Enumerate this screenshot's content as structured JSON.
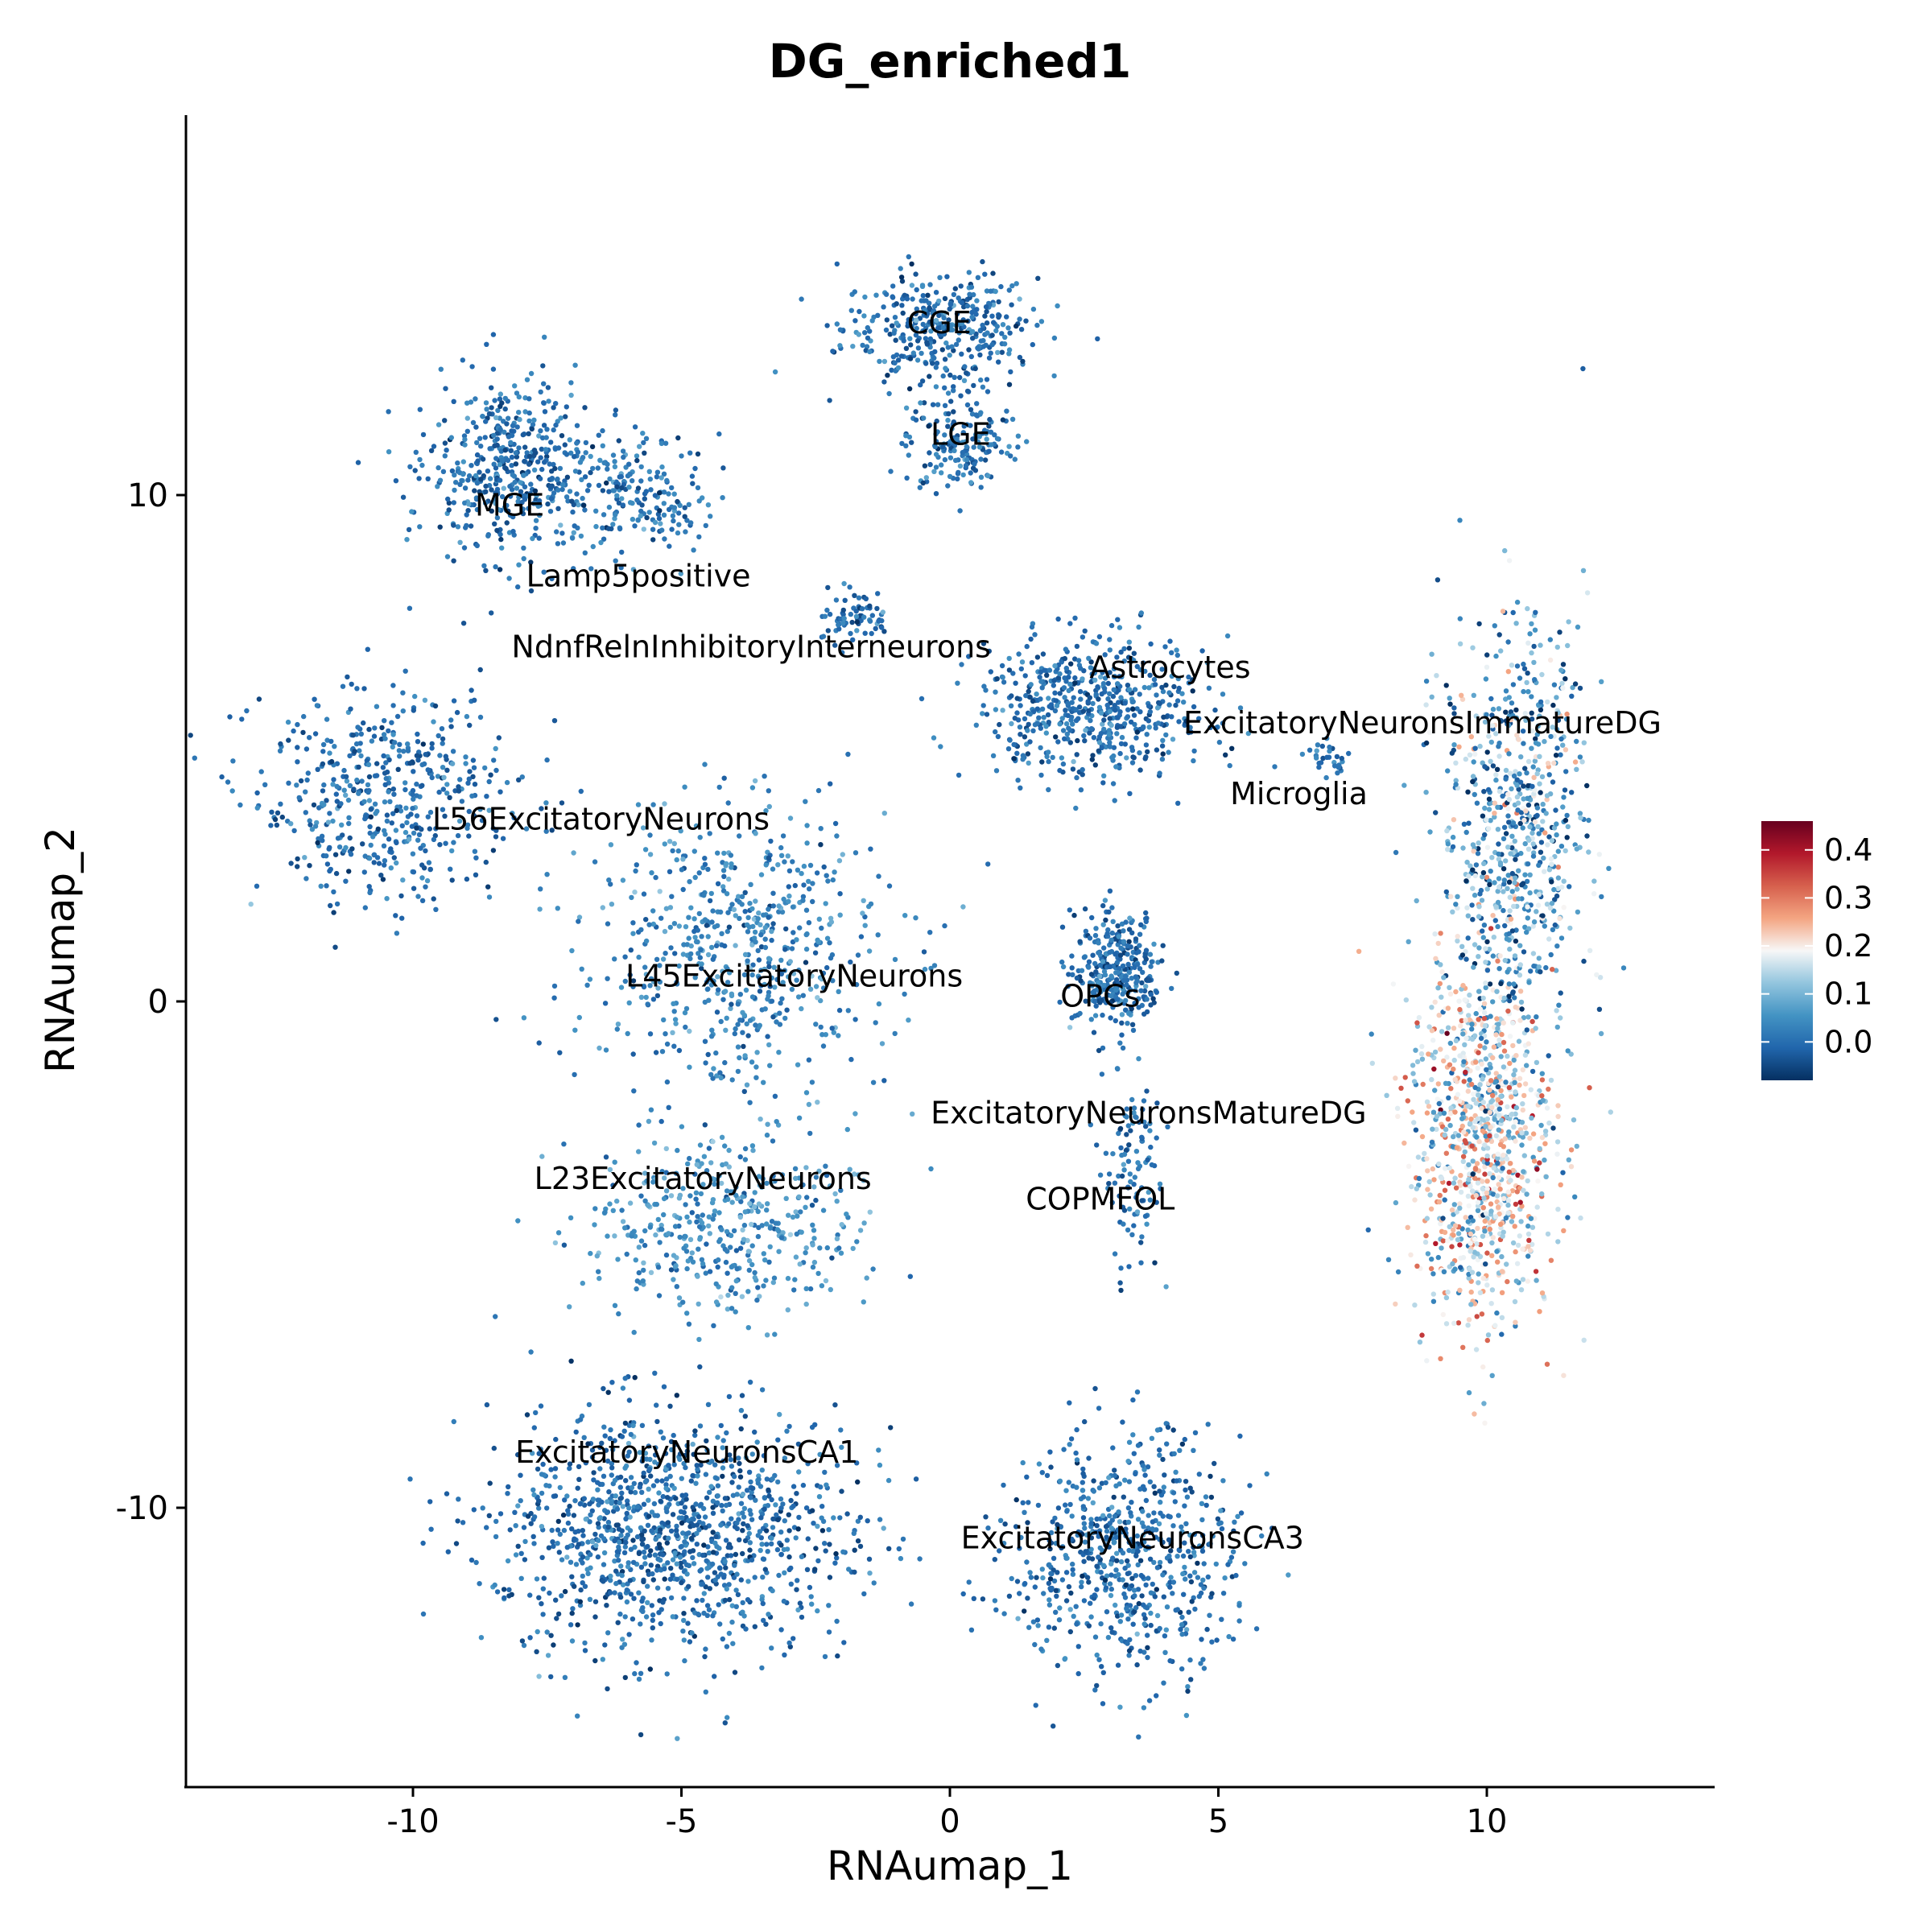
{
  "chart_data": {
    "type": "scatter",
    "title": "DG_enriched1",
    "xlabel": "RNAumap_1",
    "ylabel": "RNAumap_2",
    "xlim": [
      -14.3,
      14.3
    ],
    "ylim": [
      -15.5,
      17.5
    ],
    "x_ticks": [
      -10,
      -5,
      0,
      5,
      10
    ],
    "x_tick_labels": [
      "-10",
      "-5",
      "0",
      "5",
      "10"
    ],
    "y_ticks": [
      -10,
      0,
      10
    ],
    "y_tick_labels": [
      "-10",
      "0",
      "10"
    ],
    "grid": false,
    "legend_position": "right",
    "color_scale": {
      "name": "RdBu (reversed)",
      "min": -0.08,
      "max": 0.46,
      "ticks": [
        0.0,
        0.1,
        0.2,
        0.3,
        0.4
      ],
      "tick_labels": [
        "0.0",
        "0.1",
        "0.2",
        "0.3",
        "0.4"
      ],
      "stops": [
        "#053061",
        "#2166ac",
        "#4393c3",
        "#92c5de",
        "#f7f7f7",
        "#f4a582",
        "#d6604d",
        "#b2182b",
        "#67001f"
      ]
    },
    "clusters": [
      {
        "name": "CGE",
        "x": -0.2,
        "y": 13.3,
        "sx": 1.2,
        "sy": 0.75,
        "n": 380,
        "value": 0.0
      },
      {
        "name": "LGE",
        "x": 0.2,
        "y": 11.0,
        "sx": 0.7,
        "sy": 0.6,
        "n": 170,
        "value": 0.0
      },
      {
        "name": "MGE",
        "x": -8.2,
        "y": 10.5,
        "sx": 1.0,
        "sy": 1.2,
        "n": 460,
        "value": 0.0
      },
      {
        "name": "Lamp5positive",
        "x": -5.8,
        "y": 10.0,
        "sx": 1.0,
        "sy": 0.8,
        "n": 200,
        "value": 0.01
      },
      {
        "name": "NdnfRelnInhibitoryInterneurons",
        "x": -1.8,
        "y": 7.6,
        "sx": 0.45,
        "sy": 0.35,
        "n": 70,
        "value": 0.0
      },
      {
        "name": "L56ExcitatoryNeurons",
        "x": -10.5,
        "y": 4.0,
        "sx": 1.6,
        "sy": 1.4,
        "n": 500,
        "value": 0.0
      },
      {
        "name": "L45ExcitatoryNeurons",
        "x": -4.0,
        "y": 1.0,
        "sx": 1.9,
        "sy": 1.9,
        "n": 620,
        "value": 0.03
      },
      {
        "name": "L23ExcitatoryNeurons",
        "x": -4.3,
        "y": -4.5,
        "sx": 1.7,
        "sy": 1.2,
        "n": 420,
        "value": 0.05
      },
      {
        "name": "ExcitatoryNeuronsCA1",
        "x": -5.2,
        "y": -10.5,
        "sx": 2.2,
        "sy": 1.6,
        "n": 1150,
        "value": 0.0
      },
      {
        "name": "ExcitatoryNeuronsCA3",
        "x": 3.3,
        "y": -11.0,
        "sx": 1.4,
        "sy": 1.6,
        "n": 650,
        "value": 0.0
      },
      {
        "name": "OPCs",
        "x": 3.1,
        "y": 0.6,
        "sx": 0.55,
        "sy": 0.75,
        "n": 320,
        "value": 0.0
      },
      {
        "name": "COPMFOL",
        "x": 3.4,
        "y": -3.3,
        "sx": 0.35,
        "sy": 1.5,
        "n": 110,
        "value": 0.0
      },
      {
        "name": "Astrocytes",
        "x": 2.7,
        "y": 5.8,
        "sx": 1.4,
        "sy": 0.9,
        "n": 560,
        "value": 0.0
      },
      {
        "name": "Microglia",
        "x": 7.0,
        "y": 4.8,
        "sx": 0.25,
        "sy": 0.25,
        "n": 30,
        "value": 0.0
      },
      {
        "name": "ExcitatoryNeuronsImmatureDG",
        "x": 10.5,
        "y": 3.5,
        "sx": 0.9,
        "sy": 2.8,
        "n": 700,
        "value": 0.06
      },
      {
        "name": "ExcitatoryNeuronsMatureDG",
        "x": 9.9,
        "y": -2.8,
        "sx": 0.9,
        "sy": 2.4,
        "n": 950,
        "value": 0.17
      }
    ],
    "labels": [
      {
        "text": "CGE",
        "x": -0.2,
        "y": 13.4
      },
      {
        "text": "LGE",
        "x": 0.2,
        "y": 11.2
      },
      {
        "text": "MGE",
        "x": -8.2,
        "y": 9.8
      },
      {
        "text": "Lamp5positive",
        "x": -5.8,
        "y": 8.4
      },
      {
        "text": "NdnfRelnInhibitoryInterneurons",
        "x": -3.7,
        "y": 7.0
      },
      {
        "text": "Astrocytes",
        "x": 4.1,
        "y": 6.6
      },
      {
        "text": "ExcitatoryNeuronsImmatureDG",
        "x": 8.8,
        "y": 5.5
      },
      {
        "text": "Microglia",
        "x": 6.5,
        "y": 4.1
      },
      {
        "text": "L56ExcitatoryNeurons",
        "x": -6.5,
        "y": 3.6
      },
      {
        "text": "L45ExcitatoryNeurons",
        "x": -2.9,
        "y": 0.5
      },
      {
        "text": "OPCs",
        "x": 2.8,
        "y": 0.1
      },
      {
        "text": "ExcitatoryNeuronsMatureDG",
        "x": 3.7,
        "y": -2.2
      },
      {
        "text": "L23ExcitatoryNeurons",
        "x": -4.6,
        "y": -3.5
      },
      {
        "text": "COPMFOL",
        "x": 2.8,
        "y": -3.9
      },
      {
        "text": "ExcitatoryNeuronsCA1",
        "x": -4.9,
        "y": -8.9
      },
      {
        "text": "ExcitatoryNeuronsCA3",
        "x": 3.4,
        "y": -10.6
      }
    ]
  }
}
